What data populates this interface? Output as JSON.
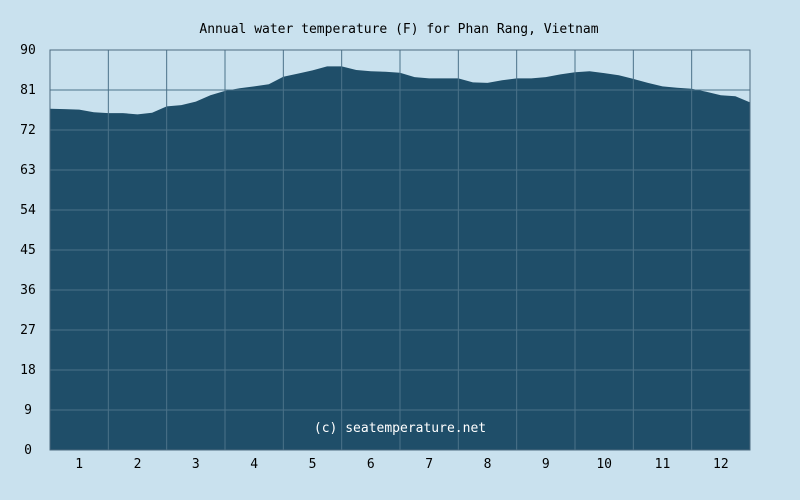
{
  "chart_data": {
    "type": "area",
    "title": "Annual water temperature (F) for Phan Rang, Vietnam",
    "xlabel": "",
    "ylabel": "",
    "x_ticks": [
      "1",
      "2",
      "3",
      "4",
      "5",
      "6",
      "7",
      "8",
      "9",
      "10",
      "11",
      "12"
    ],
    "y_ticks": [
      "0",
      "9",
      "18",
      "27",
      "36",
      "45",
      "54",
      "63",
      "72",
      "81",
      "90"
    ],
    "ylim": [
      0,
      90
    ],
    "xlim": [
      0.5,
      12.5
    ],
    "grid": true,
    "series": [
      {
        "x": [
          0.5,
          0.75,
          1.0,
          1.25,
          1.5,
          1.75,
          2.0,
          2.25,
          2.5,
          2.75,
          3.0,
          3.25,
          3.5,
          3.75,
          4.0,
          4.25,
          4.5,
          4.75,
          5.0,
          5.25,
          5.5,
          5.75,
          6.0,
          6.25,
          6.5,
          6.75,
          7.0,
          7.25,
          7.5,
          7.75,
          8.0,
          8.25,
          8.5,
          8.75,
          9.0,
          9.25,
          9.5,
          9.75,
          10.0,
          10.25,
          10.5,
          10.75,
          11.0,
          11.25,
          11.5,
          11.75,
          12.0,
          12.25,
          12.5
        ],
        "values": [
          76.8,
          76.7,
          76.6,
          76.0,
          75.8,
          75.8,
          75.5,
          75.9,
          77.3,
          77.6,
          78.4,
          79.8,
          80.8,
          81.4,
          81.8,
          82.3,
          84.0,
          84.7,
          85.4,
          86.3,
          86.3,
          85.5,
          85.2,
          85.1,
          84.9,
          83.9,
          83.6,
          83.6,
          83.6,
          82.7,
          82.6,
          83.2,
          83.6,
          83.6,
          83.9,
          84.5,
          85.0,
          85.2,
          84.8,
          84.3,
          83.5,
          82.6,
          81.8,
          81.5,
          81.3,
          80.6,
          79.8,
          79.6,
          78.2
        ]
      }
    ],
    "colors": {
      "background": "#c9e1ee",
      "plot_background": "#c9e1ee",
      "area_fill": "#1f4e69",
      "grid": "#4b7289",
      "frame": "#4d6b80"
    }
  },
  "watermark": "(c) seatemperature.net"
}
